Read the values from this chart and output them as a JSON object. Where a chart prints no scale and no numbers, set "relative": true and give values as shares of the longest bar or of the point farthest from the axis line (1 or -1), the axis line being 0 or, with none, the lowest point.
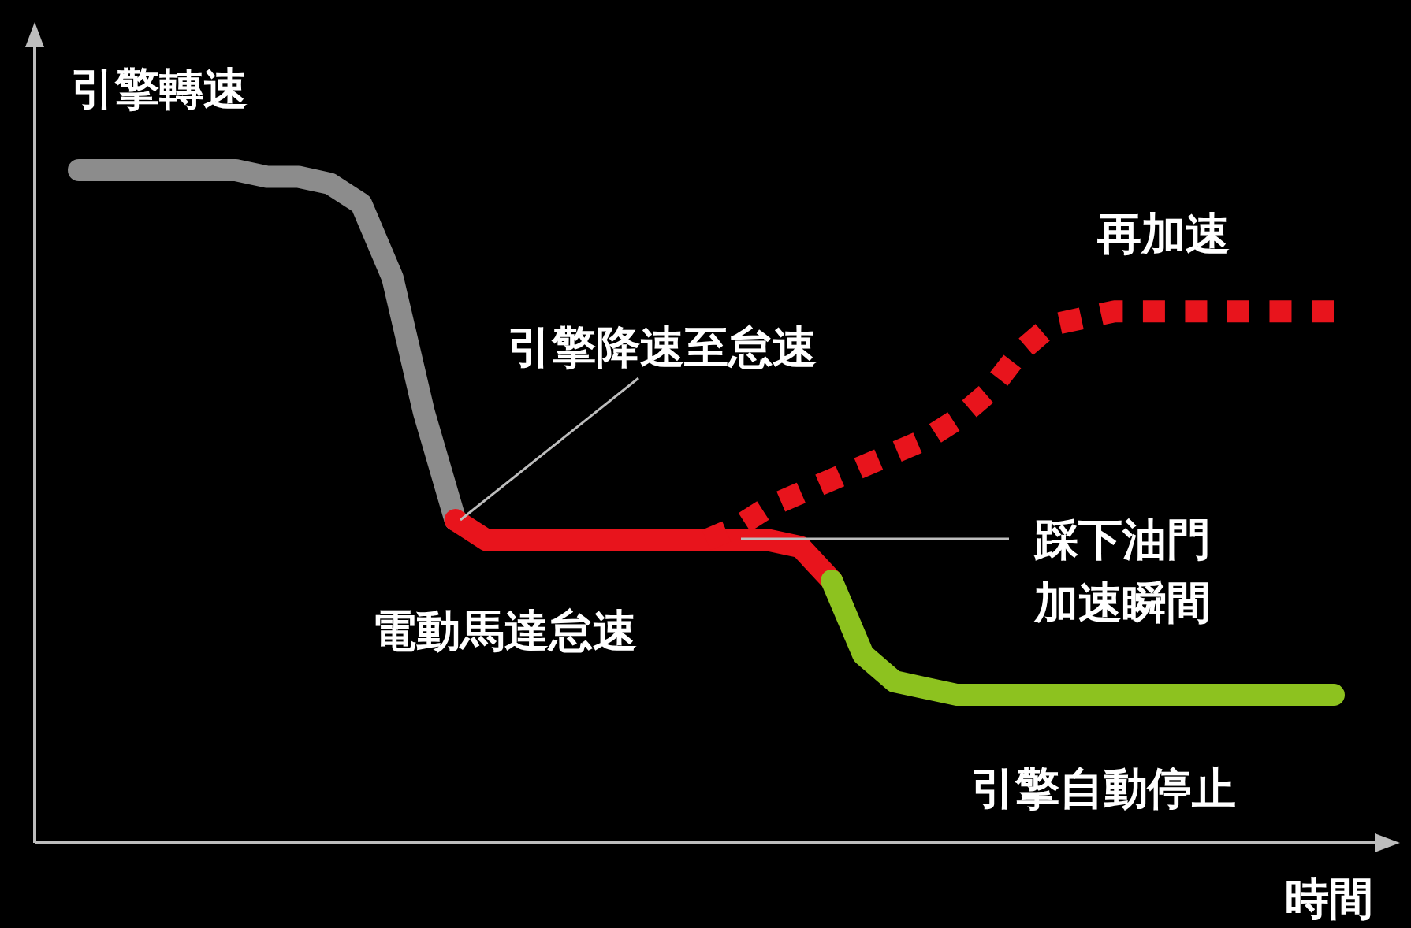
{
  "chart_data": {
    "type": "line",
    "relative": true,
    "xlabel": "時間",
    "ylabel": "引擎轉速",
    "categories": [
      null,
      null,
      null,
      null,
      null,
      null,
      null,
      null,
      null,
      null,
      null,
      null,
      null,
      null,
      null,
      null,
      null,
      null,
      null,
      null,
      null,
      null,
      null,
      null,
      null,
      null,
      null,
      null,
      null,
      null,
      null,
      null,
      null,
      null,
      null,
      null,
      null,
      null,
      null,
      null,
      null
    ],
    "series": [
      {
        "color": "#8c8c8c",
        "line_style": "solid",
        "values": [
          1.0,
          1.0,
          1.0,
          1.0,
          1.0,
          1.0,
          0.99,
          0.99,
          0.98,
          0.95,
          0.84,
          0.64,
          0.48,
          null,
          null,
          null,
          null,
          null,
          null,
          null,
          null,
          null,
          null,
          null,
          null,
          null,
          null,
          null,
          null,
          null,
          null,
          null,
          null,
          null,
          null,
          null,
          null,
          null,
          null,
          null,
          null
        ]
      },
      {
        "name": "電動馬達怠速",
        "color": "#e8141c",
        "line_style": "solid",
        "values": [
          null,
          null,
          null,
          null,
          null,
          null,
          null,
          null,
          null,
          null,
          null,
          null,
          0.48,
          0.45,
          0.45,
          0.45,
          0.45,
          0.45,
          0.45,
          0.45,
          0.45,
          0.45,
          0.45,
          0.44,
          0.39,
          null,
          null,
          null,
          null,
          null,
          null,
          null,
          null,
          null,
          null,
          null,
          null,
          null,
          null,
          null,
          null
        ]
      },
      {
        "name": "引擎自動停止",
        "color": "#8dc21f",
        "line_style": "solid",
        "values": [
          null,
          null,
          null,
          null,
          null,
          null,
          null,
          null,
          null,
          null,
          null,
          null,
          null,
          null,
          null,
          null,
          null,
          null,
          null,
          null,
          null,
          null,
          null,
          null,
          0.39,
          0.28,
          0.24,
          0.23,
          0.22,
          0.22,
          0.22,
          0.22,
          0.22,
          0.22,
          0.22,
          0.22,
          0.22,
          0.22,
          0.22,
          0.22,
          0.22
        ]
      },
      {
        "name": "再加速",
        "color": "#e8141c",
        "line_style": "dashed",
        "values": [
          null,
          null,
          null,
          null,
          null,
          null,
          null,
          null,
          null,
          null,
          null,
          null,
          null,
          null,
          null,
          null,
          null,
          null,
          null,
          null,
          0.45,
          0.47,
          0.5,
          0.52,
          0.54,
          0.56,
          0.58,
          0.6,
          0.63,
          0.67,
          0.73,
          0.77,
          0.78,
          0.79,
          0.79,
          0.79,
          0.79,
          0.79,
          0.79,
          0.79,
          0.79
        ]
      }
    ],
    "annotations": [
      "引擎降速至怠速",
      "踩下油門",
      "加速瞬間"
    ]
  }
}
